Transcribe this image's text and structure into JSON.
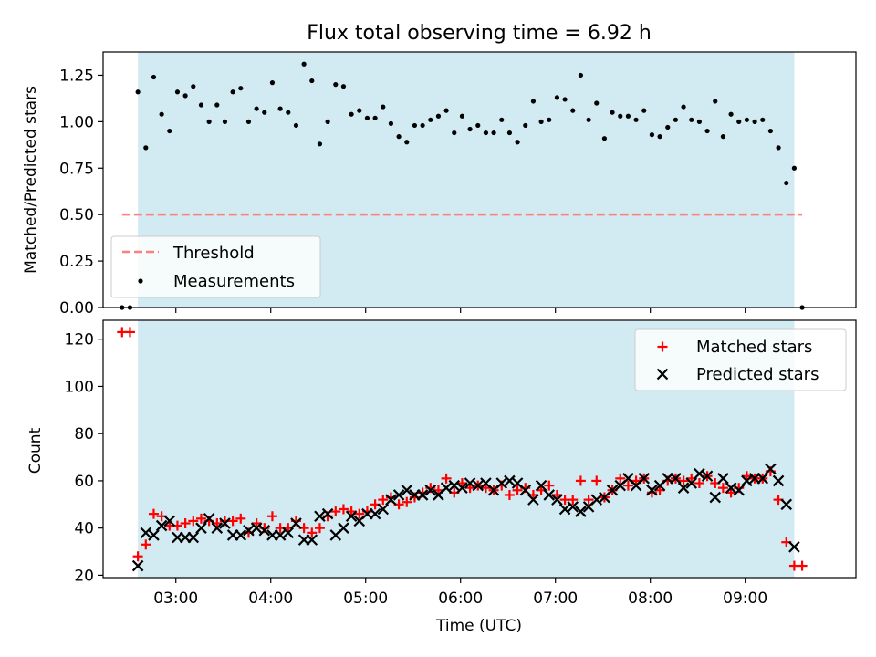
{
  "colors": {
    "shade": "#add8e6",
    "threshold": "#ff7f7f",
    "measurement": "#000000",
    "matched": "#ff0000",
    "predicted": "#000000"
  },
  "chart_data": [
    {
      "type": "scatter",
      "title": "Flux total observing time = 6.92 h",
      "xlabel": "",
      "ylabel": "Matched/Predicted stars",
      "xlim": [
        "02:14",
        "10:10"
      ],
      "ylim": [
        0,
        1.375
      ],
      "yticks": [
        0.0,
        0.25,
        0.5,
        0.75,
        1.0,
        1.25
      ],
      "ytick_labels": [
        "0.00",
        "0.25",
        "0.50",
        "0.75",
        "1.00",
        "1.25"
      ],
      "observing_window": [
        "02:36",
        "09:31"
      ],
      "grid": false,
      "legend": {
        "placement": "lower-left",
        "entries": [
          "Threshold",
          "Measurements"
        ]
      },
      "threshold": {
        "name": "Threshold",
        "x": [
          "02:26",
          "09:36"
        ],
        "y": 0.5,
        "style": "dashed"
      },
      "series": [
        {
          "name": "Measurements",
          "marker": "dot",
          "x": [
            "02:26",
            "02:31",
            "02:36",
            "02:41",
            "02:46",
            "02:51",
            "02:56",
            "03:01",
            "03:06",
            "03:11",
            "03:16",
            "03:21",
            "03:26",
            "03:31",
            "03:36",
            "03:41",
            "03:46",
            "03:51",
            "03:56",
            "04:01",
            "04:06",
            "04:11",
            "04:16",
            "04:21",
            "04:26",
            "04:31",
            "04:36",
            "04:41",
            "04:46",
            "04:51",
            "04:56",
            "05:01",
            "05:06",
            "05:11",
            "05:16",
            "05:21",
            "05:26",
            "05:31",
            "05:36",
            "05:41",
            "05:46",
            "05:51",
            "05:56",
            "06:01",
            "06:06",
            "06:11",
            "06:16",
            "06:21",
            "06:26",
            "06:31",
            "06:36",
            "06:41",
            "06:46",
            "06:51",
            "06:56",
            "07:01",
            "07:06",
            "07:11",
            "07:16",
            "07:21",
            "07:26",
            "07:31",
            "07:36",
            "07:41",
            "07:46",
            "07:51",
            "07:56",
            "08:01",
            "08:06",
            "08:11",
            "08:16",
            "08:21",
            "08:26",
            "08:31",
            "08:36",
            "08:41",
            "08:46",
            "08:51",
            "08:56",
            "09:01",
            "09:06",
            "09:11",
            "09:16",
            "09:21",
            "09:26",
            "09:31",
            "09:36"
          ],
          "y": [
            0.0,
            0.0,
            1.16,
            0.86,
            1.24,
            1.04,
            0.95,
            1.16,
            1.14,
            1.19,
            1.09,
            1.0,
            1.09,
            1.0,
            1.16,
            1.18,
            1.0,
            1.07,
            1.05,
            1.21,
            1.07,
            1.05,
            0.98,
            1.31,
            1.22,
            0.88,
            1.0,
            1.2,
            1.19,
            1.04,
            1.06,
            1.02,
            1.02,
            1.08,
            0.99,
            0.92,
            0.89,
            0.98,
            0.98,
            1.01,
            1.03,
            1.06,
            0.94,
            1.03,
            0.96,
            0.98,
            0.94,
            0.94,
            1.01,
            0.94,
            0.89,
            0.98,
            1.11,
            1.0,
            1.01,
            1.13,
            1.12,
            1.06,
            1.25,
            1.01,
            1.1,
            0.91,
            1.05,
            1.03,
            1.03,
            1.01,
            1.06,
            0.93,
            0.92,
            0.97,
            1.01,
            1.08,
            1.01,
            1.0,
            0.95,
            1.11,
            0.92,
            1.04,
            1.0,
            1.01,
            1.0,
            1.01,
            0.95,
            0.86,
            0.67,
            0.75,
            0.0
          ]
        }
      ]
    },
    {
      "type": "scatter",
      "title": "",
      "xlabel": "Time (UTC)",
      "ylabel": "Count",
      "xlim": [
        "02:14",
        "10:10"
      ],
      "ylim": [
        19,
        128
      ],
      "xticks": [
        "03:00",
        "04:00",
        "05:00",
        "06:00",
        "07:00",
        "08:00",
        "09:00"
      ],
      "yticks": [
        20,
        40,
        60,
        80,
        100,
        120
      ],
      "observing_window": [
        "02:36",
        "09:31"
      ],
      "grid": false,
      "legend": {
        "placement": "top-right",
        "entries": [
          "Matched stars",
          "Predicted stars"
        ]
      },
      "series": [
        {
          "name": "Matched stars",
          "marker": "plus",
          "x": [
            "02:26",
            "02:31",
            "02:36",
            "02:41",
            "02:46",
            "02:51",
            "02:56",
            "03:01",
            "03:06",
            "03:11",
            "03:16",
            "03:21",
            "03:26",
            "03:31",
            "03:36",
            "03:41",
            "03:46",
            "03:51",
            "03:56",
            "04:01",
            "04:06",
            "04:11",
            "04:16",
            "04:21",
            "04:26",
            "04:31",
            "04:36",
            "04:41",
            "04:46",
            "04:51",
            "04:56",
            "05:01",
            "05:06",
            "05:11",
            "05:16",
            "05:21",
            "05:26",
            "05:31",
            "05:36",
            "05:41",
            "05:46",
            "05:51",
            "05:56",
            "06:01",
            "06:06",
            "06:11",
            "06:16",
            "06:21",
            "06:26",
            "06:31",
            "06:36",
            "06:41",
            "06:46",
            "06:51",
            "06:56",
            "07:01",
            "07:06",
            "07:11",
            "07:16",
            "07:21",
            "07:26",
            "07:31",
            "07:36",
            "07:41",
            "07:46",
            "07:51",
            "07:56",
            "08:01",
            "08:06",
            "08:11",
            "08:16",
            "08:21",
            "08:26",
            "08:31",
            "08:36",
            "08:41",
            "08:46",
            "08:51",
            "08:56",
            "09:01",
            "09:06",
            "09:11",
            "09:16",
            "09:21",
            "09:26",
            "09:31",
            "09:36"
          ],
          "y": [
            123,
            123,
            28,
            33,
            46,
            45,
            41,
            41,
            42,
            43,
            44,
            43,
            42,
            43,
            43,
            44,
            38,
            42,
            40,
            45,
            40,
            40,
            43,
            40,
            38,
            40,
            45,
            47,
            48,
            47,
            46,
            47,
            50,
            52,
            53,
            50,
            51,
            53,
            55,
            57,
            56,
            61,
            55,
            59,
            57,
            58,
            57,
            56,
            58,
            54,
            56,
            57,
            54,
            56,
            58,
            54,
            52,
            52,
            60,
            52,
            60,
            53,
            56,
            61,
            58,
            60,
            61,
            55,
            56,
            60,
            61,
            60,
            61,
            59,
            62,
            59,
            57,
            55,
            57,
            62,
            61,
            61,
            64,
            52,
            34,
            24,
            24
          ]
        },
        {
          "name": "Predicted stars",
          "marker": "x",
          "x": [
            "02:36",
            "02:41",
            "02:46",
            "02:51",
            "02:56",
            "03:01",
            "03:06",
            "03:11",
            "03:16",
            "03:21",
            "03:26",
            "03:31",
            "03:36",
            "03:41",
            "03:46",
            "03:51",
            "03:56",
            "04:01",
            "04:06",
            "04:11",
            "04:16",
            "04:21",
            "04:26",
            "04:31",
            "04:36",
            "04:41",
            "04:46",
            "04:51",
            "04:56",
            "05:01",
            "05:06",
            "05:11",
            "05:16",
            "05:21",
            "05:26",
            "05:31",
            "05:36",
            "05:41",
            "05:46",
            "05:51",
            "05:56",
            "06:01",
            "06:06",
            "06:11",
            "06:16",
            "06:21",
            "06:26",
            "06:31",
            "06:36",
            "06:41",
            "06:46",
            "06:51",
            "06:56",
            "07:01",
            "07:06",
            "07:11",
            "07:16",
            "07:21",
            "07:26",
            "07:31",
            "07:36",
            "07:41",
            "07:46",
            "07:51",
            "07:56",
            "08:01",
            "08:06",
            "08:11",
            "08:16",
            "08:21",
            "08:26",
            "08:31",
            "08:36",
            "08:41",
            "08:46",
            "08:51",
            "08:56",
            "09:01",
            "09:06",
            "09:11",
            "09:16",
            "09:21",
            "09:26",
            "09:31"
          ],
          "y": [
            24,
            38,
            37,
            41,
            43,
            36,
            36,
            36,
            40,
            44,
            40,
            42,
            37,
            37,
            39,
            40,
            39,
            37,
            37,
            38,
            42,
            35,
            35,
            45,
            46,
            37,
            40,
            45,
            43,
            46,
            46,
            48,
            52,
            54,
            56,
            54,
            54,
            56,
            54,
            57,
            58,
            57,
            59,
            58,
            59,
            56,
            59,
            60,
            59,
            56,
            52,
            58,
            54,
            52,
            48,
            49,
            47,
            49,
            52,
            53,
            56,
            58,
            61,
            58,
            61,
            56,
            58,
            61,
            61,
            57,
            59,
            63,
            62,
            53,
            61,
            57,
            56,
            60,
            61,
            61,
            65,
            60,
            50,
            32
          ]
        }
      ]
    }
  ]
}
